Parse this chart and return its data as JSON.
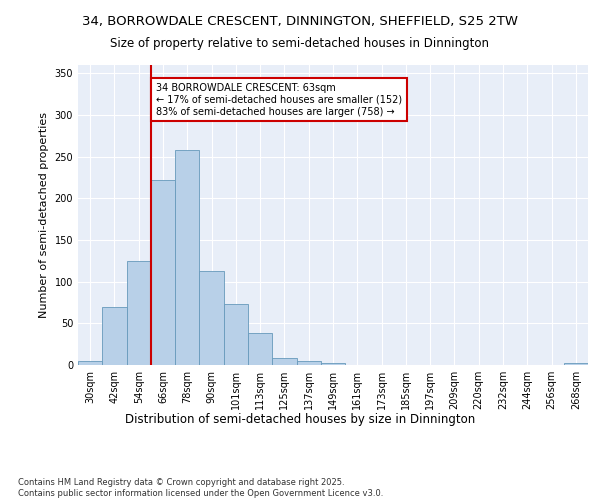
{
  "title1": "34, BORROWDALE CRESCENT, DINNINGTON, SHEFFIELD, S25 2TW",
  "title2": "Size of property relative to semi-detached houses in Dinnington",
  "xlabel": "Distribution of semi-detached houses by size in Dinnington",
  "ylabel": "Number of semi-detached properties",
  "categories": [
    "30sqm",
    "42sqm",
    "54sqm",
    "66sqm",
    "78sqm",
    "90sqm",
    "101sqm",
    "113sqm",
    "125sqm",
    "137sqm",
    "149sqm",
    "161sqm",
    "173sqm",
    "185sqm",
    "197sqm",
    "209sqm",
    "220sqm",
    "232sqm",
    "244sqm",
    "256sqm",
    "268sqm"
  ],
  "values": [
    5,
    70,
    125,
    222,
    258,
    113,
    73,
    38,
    8,
    5,
    3,
    0,
    0,
    0,
    0,
    0,
    0,
    0,
    0,
    0,
    2
  ],
  "bar_color": "#b8d0e8",
  "bar_edge_color": "#6699bb",
  "background_color": "#e8eef8",
  "grid_color": "#ffffff",
  "vline_color": "#cc0000",
  "vline_x": 3.0,
  "annotation_text": "34 BORROWDALE CRESCENT: 63sqm\n← 17% of semi-detached houses are smaller (152)\n83% of semi-detached houses are larger (758) →",
  "annotation_box_color": "#ffffff",
  "annotation_edge_color": "#cc0000",
  "ylim": [
    0,
    360
  ],
  "yticks": [
    0,
    50,
    100,
    150,
    200,
    250,
    300,
    350
  ],
  "footnote": "Contains HM Land Registry data © Crown copyright and database right 2025.\nContains public sector information licensed under the Open Government Licence v3.0.",
  "title1_fontsize": 9.5,
  "title2_fontsize": 8.5,
  "xlabel_fontsize": 8.5,
  "ylabel_fontsize": 8,
  "tick_fontsize": 7,
  "annotation_fontsize": 7,
  "footnote_fontsize": 6
}
